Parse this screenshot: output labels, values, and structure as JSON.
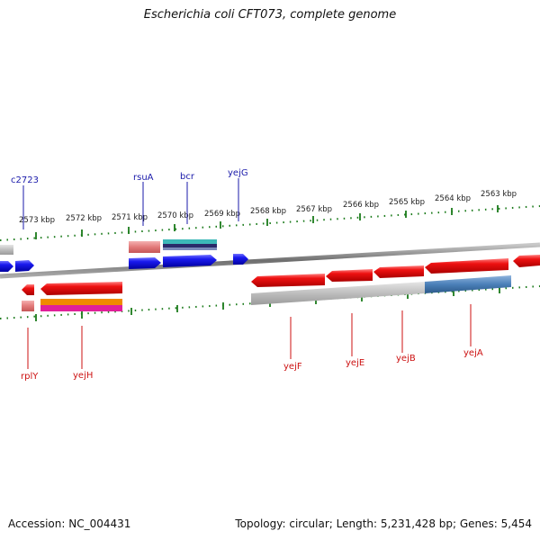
{
  "title": "Escherichia coli CFT073, complete genome",
  "footer": {
    "accession": "Accession: NC_004431",
    "summary": "Topology: circular; Length: 5,231,428 bp; Genes: 5,454"
  },
  "colors": {
    "forward_gene": "#1a1aee",
    "reverse_gene": "#ee1111",
    "forward_label": "#1a1aaa",
    "reverse_label": "#cc1111",
    "tick": "#1a7a1a",
    "backbone": "#8a8a8a"
  },
  "scale_labels": [
    "2573 kbp",
    "2572 kbp",
    "2571 kbp",
    "2570 kbp",
    "2569 kbp",
    "2568 kbp",
    "2567 kbp",
    "2566 kbp",
    "2565 kbp",
    "2564 kbp",
    "2563 kbp"
  ],
  "forward_genes": [
    "c2723",
    "rsuA",
    "bcr",
    "yejG"
  ],
  "reverse_genes": [
    "rplY",
    "yejH",
    "yejF",
    "yejE",
    "yejB",
    "yejA"
  ]
}
